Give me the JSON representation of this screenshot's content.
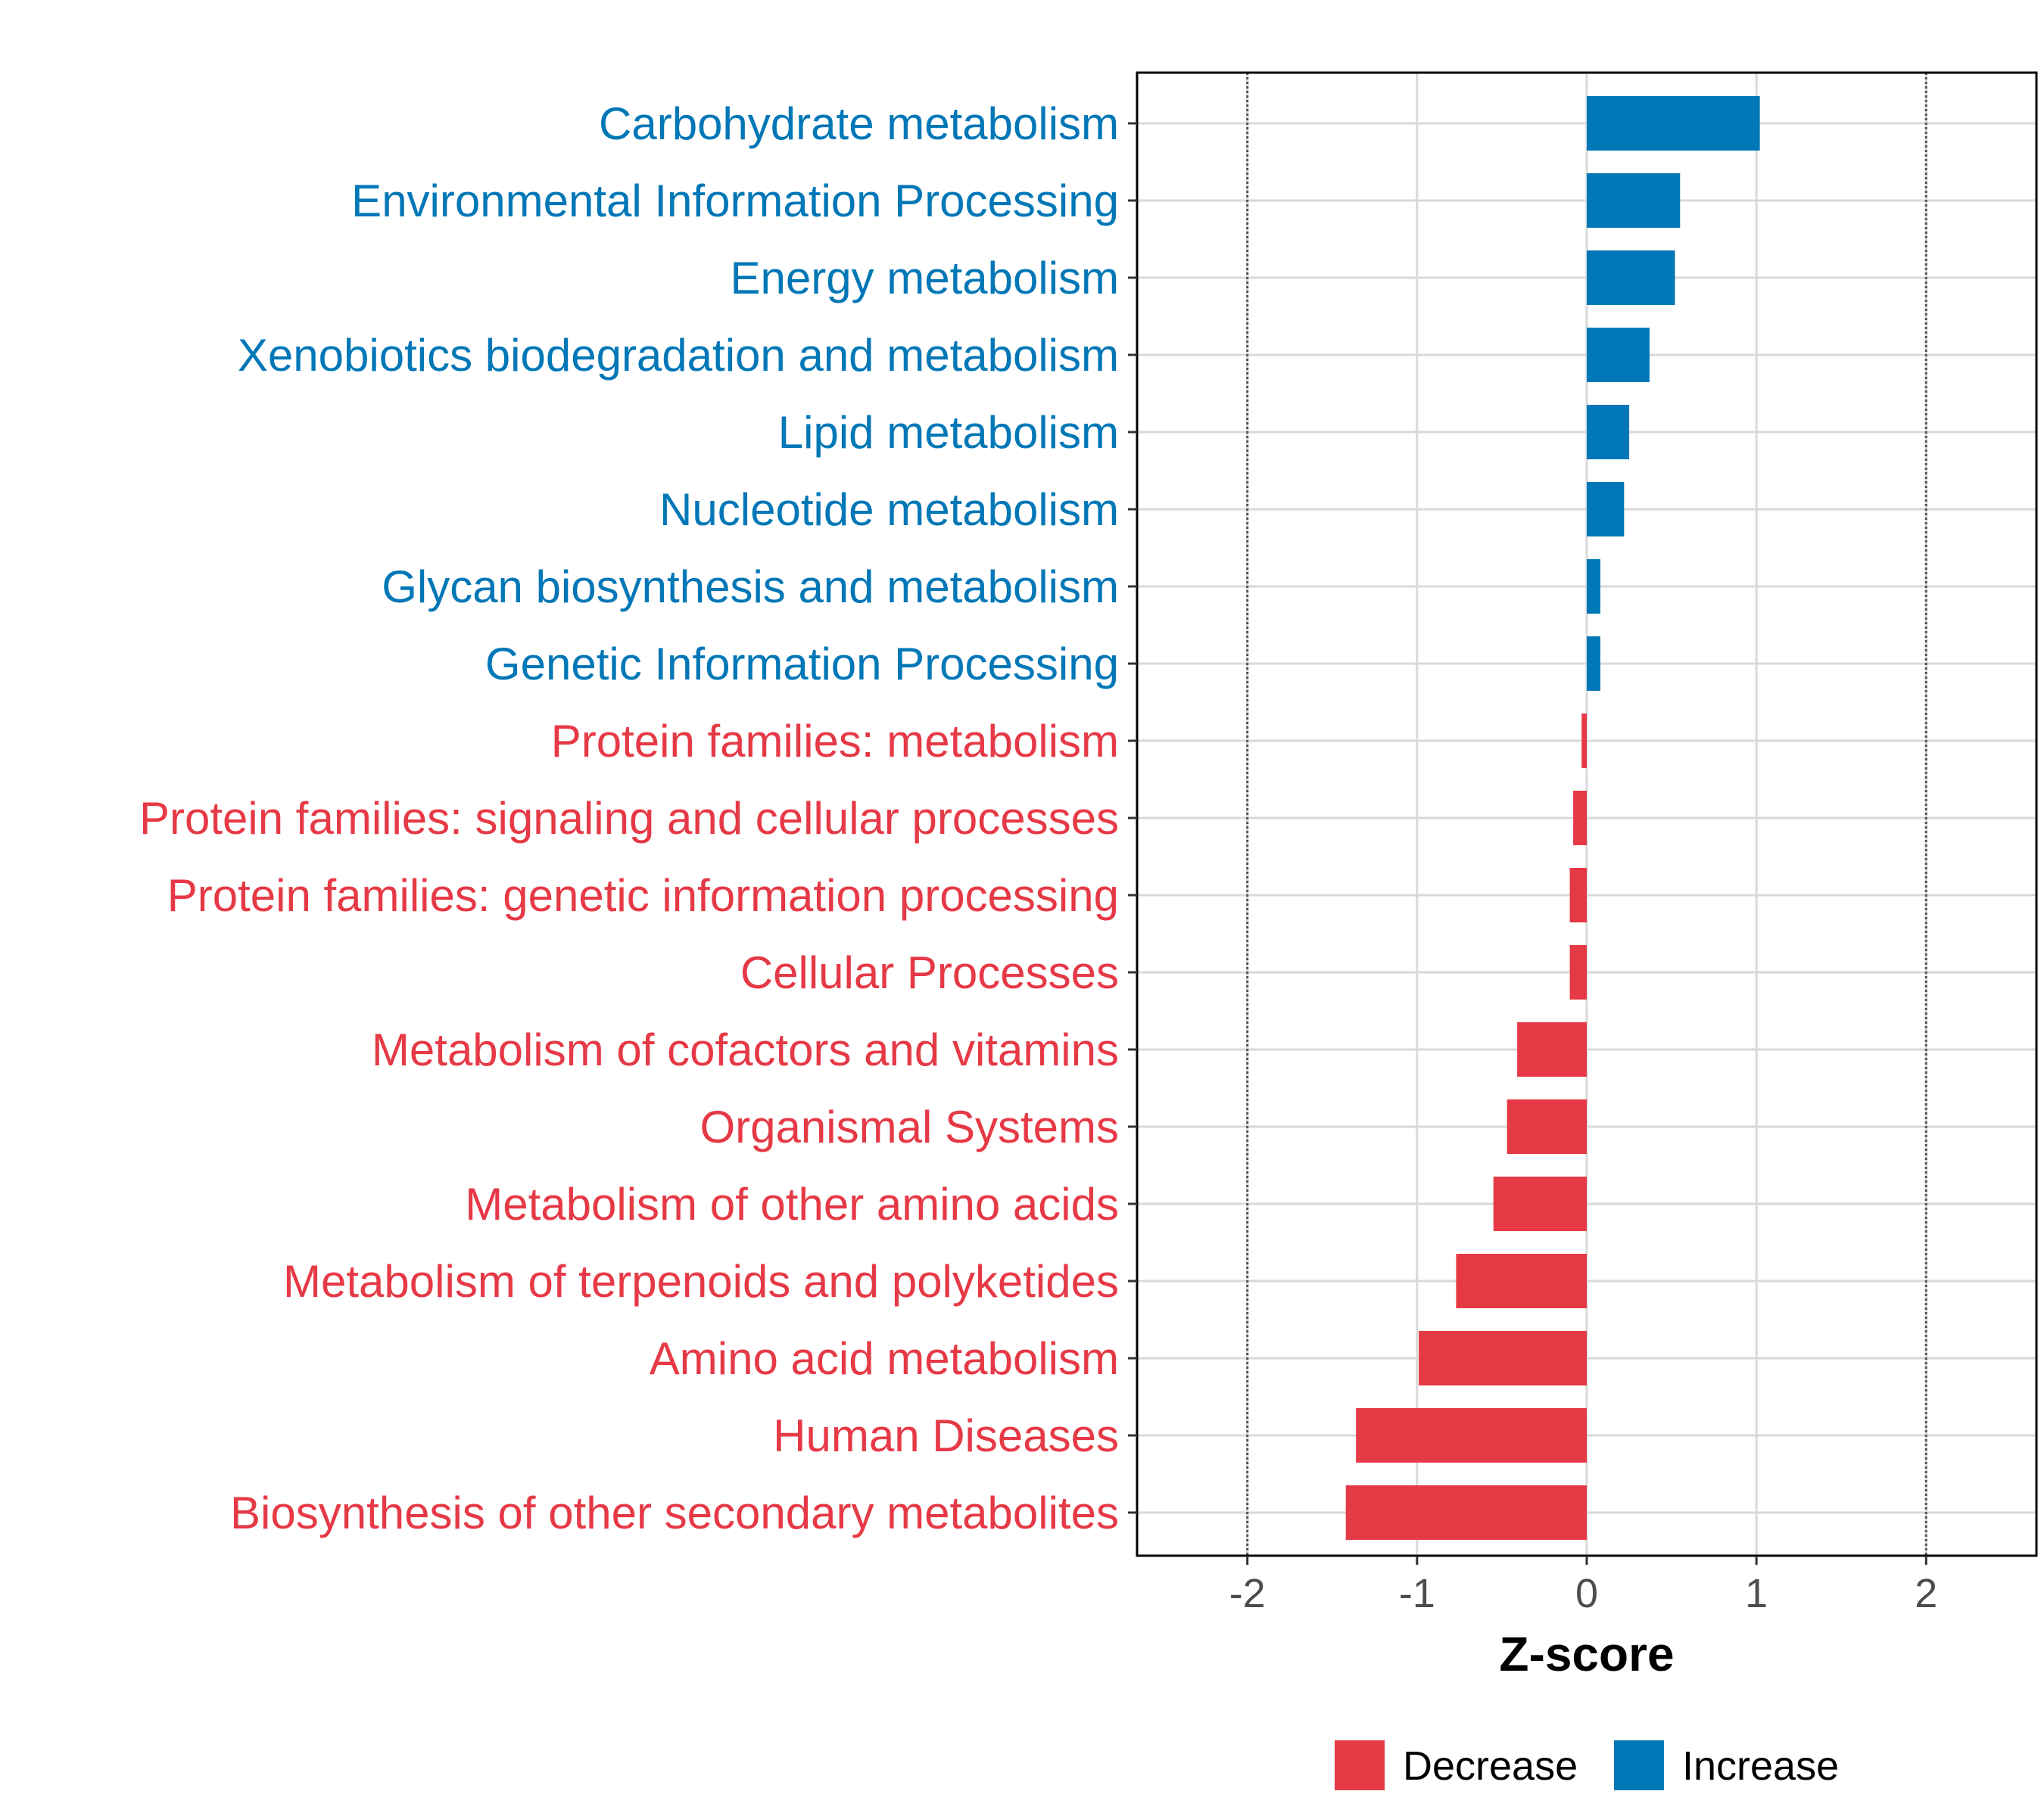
{
  "chart_data": {
    "type": "bar",
    "orientation": "horizontal",
    "title": "",
    "xlabel": "Z-score",
    "ylabel": "",
    "xlim": [
      -2.65,
      2.65
    ],
    "x_ticks": [
      -2,
      -1,
      0,
      1,
      2
    ],
    "x_tick_labels": [
      "-2",
      "-1",
      "0",
      "1",
      "2"
    ],
    "reference_lines": [
      -2,
      2
    ],
    "grid": true,
    "legend_position": "bottom",
    "colors": {
      "Decrease": "#E63946",
      "Increase": "#0077B6"
    },
    "legend": [
      {
        "label": "Decrease",
        "color": "#E63946"
      },
      {
        "label": "Increase",
        "color": "#0077B6"
      }
    ],
    "categories": [
      "Carbohydrate metabolism",
      "Environmental Information Processing",
      "Energy metabolism",
      "Xenobiotics biodegradation and metabolism",
      "Lipid metabolism",
      "Nucleotide metabolism",
      "Glycan biosynthesis and metabolism",
      "Genetic Information Processing",
      "Protein families: metabolism",
      "Protein families: signaling and cellular processes",
      "Protein families: genetic information processing",
      "Cellular Processes",
      "Metabolism of cofactors and vitamins",
      "Organismal Systems",
      "Metabolism of other amino acids",
      "Metabolism of terpenoids and polyketides",
      "Amino acid metabolism",
      "Human Diseases",
      "Biosynthesis of other secondary metabolites"
    ],
    "values": [
      1.02,
      0.55,
      0.52,
      0.37,
      0.25,
      0.22,
      0.08,
      0.08,
      -0.03,
      -0.08,
      -0.1,
      -0.1,
      -0.41,
      -0.47,
      -0.55,
      -0.77,
      -0.99,
      -1.36,
      -1.42
    ],
    "groups": [
      "Increase",
      "Increase",
      "Increase",
      "Increase",
      "Increase",
      "Increase",
      "Increase",
      "Increase",
      "Decrease",
      "Decrease",
      "Decrease",
      "Decrease",
      "Decrease",
      "Decrease",
      "Decrease",
      "Decrease",
      "Decrease",
      "Decrease",
      "Decrease"
    ]
  }
}
